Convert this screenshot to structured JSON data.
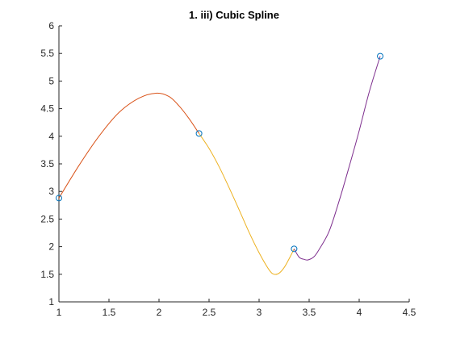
{
  "chart_data": {
    "type": "line",
    "title": "1. iii) Cubic Spline",
    "xlabel": "",
    "ylabel": "",
    "xlim": [
      1,
      4.5
    ],
    "ylim": [
      1,
      6
    ],
    "xticks": [
      "1",
      "1.5",
      "2",
      "2.5",
      "3",
      "3.5",
      "4",
      "4.5"
    ],
    "yticks": [
      "1",
      "1.5",
      "2",
      "2.5",
      "3",
      "3.5",
      "4",
      "4.5",
      "5",
      "5.5",
      "6"
    ],
    "grid": false,
    "knots": {
      "x": [
        1.0,
        2.4,
        3.35,
        4.21
      ],
      "y": [
        2.88,
        4.05,
        1.96,
        5.45
      ],
      "color": "#0072BD",
      "marker": "circle"
    },
    "series": [
      {
        "color": "#D95319",
        "x": [
          1.0,
          1.2,
          1.4,
          1.6,
          1.8,
          1.97,
          2.1,
          2.2,
          2.3,
          2.4
        ],
        "y": [
          2.88,
          3.47,
          4.0,
          4.43,
          4.69,
          4.78,
          4.72,
          4.55,
          4.32,
          4.05
        ]
      },
      {
        "color": "#EDB120",
        "x": [
          2.4,
          2.5,
          2.6,
          2.7,
          2.8,
          2.9,
          3.0,
          3.1,
          3.15,
          3.2,
          3.25,
          3.3,
          3.35
        ],
        "y": [
          4.05,
          3.78,
          3.45,
          3.07,
          2.67,
          2.26,
          1.89,
          1.58,
          1.5,
          1.52,
          1.62,
          1.78,
          1.96
        ]
      },
      {
        "color": "#7E2F8E",
        "x": [
          3.35,
          3.4,
          3.45,
          3.49,
          3.55,
          3.6,
          3.7,
          3.8,
          3.9,
          4.0,
          4.1,
          4.21
        ],
        "y": [
          1.96,
          1.81,
          1.77,
          1.76,
          1.82,
          1.95,
          2.28,
          2.83,
          3.45,
          4.1,
          4.8,
          5.45
        ]
      }
    ]
  }
}
